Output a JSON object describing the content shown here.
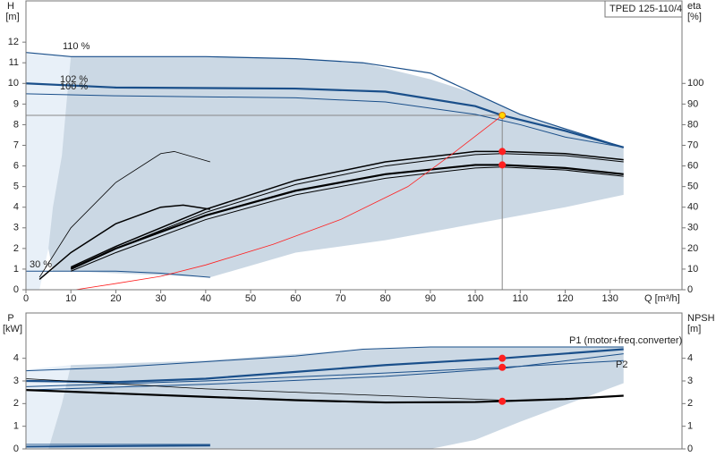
{
  "chart_data": [
    {
      "type": "line",
      "title": "TPED 125-110/4",
      "ylabel": "H",
      "yunit": "[m]",
      "y2label": "eta",
      "y2unit": "[%]",
      "xlabel": "Q [m³/h]",
      "xlim": [
        0,
        146
      ],
      "xticks": [
        0,
        10,
        20,
        30,
        40,
        50,
        60,
        70,
        80,
        90,
        100,
        110,
        120,
        130
      ],
      "ylim": [
        0,
        14
      ],
      "yticks": [
        0,
        1,
        2,
        3,
        4,
        5,
        6,
        7,
        8,
        9,
        10,
        11,
        12
      ],
      "y2lim": [
        0,
        140
      ],
      "y2ticks": [
        0,
        10,
        20,
        30,
        40,
        50,
        60,
        70,
        80,
        90,
        100
      ],
      "regions": [
        {
          "color": "#e8f0f8",
          "x": [
            0,
            10,
            9,
            8,
            6,
            4,
            3,
            0
          ],
          "values": [
            11.5,
            11.3,
            8,
            6,
            3,
            1,
            0,
            0
          ]
        },
        {
          "color": "#cbd8e4",
          "x": [
            10,
            20,
            40,
            60,
            75,
            90,
            100,
            110,
            120,
            133,
            133,
            120,
            100,
            80,
            60,
            41,
            20,
            10,
            6,
            5,
            6,
            8,
            9
          ],
          "values": [
            11.3,
            11.3,
            11.3,
            11.2,
            11.0,
            10.2,
            9.5,
            8.5,
            7.8,
            6.9,
            4.6,
            4.0,
            3.2,
            2.4,
            1.8,
            0.6,
            0.8,
            0.9,
            0.9,
            2,
            4,
            6.5,
            9
          ]
        }
      ],
      "series": [
        {
          "name": "110 %",
          "color": "#1a4f8a",
          "width": 1.2,
          "x": [
            0,
            10,
            20,
            40,
            60,
            75,
            90,
            100,
            110,
            120,
            133
          ],
          "values": [
            11.5,
            11.3,
            11.3,
            11.3,
            11.2,
            11.0,
            10.5,
            9.5,
            8.5,
            7.8,
            6.9
          ]
        },
        {
          "name": "102 %",
          "color": "#1a4f8a",
          "width": 2.2,
          "x": [
            0,
            20,
            60,
            80,
            100,
            106,
            120,
            133
          ],
          "values": [
            10,
            9.8,
            9.75,
            9.6,
            8.9,
            8.45,
            7.7,
            6.9
          ]
        },
        {
          "name": "100 %",
          "color": "#1a4f8a",
          "width": 1,
          "x": [
            0,
            20,
            60,
            80,
            100,
            110,
            120,
            133
          ],
          "values": [
            9.5,
            9.4,
            9.3,
            9.1,
            8.5,
            8.0,
            7.4,
            6.9
          ]
        },
        {
          "name": "30 %",
          "color": "#1a4f8a",
          "width": 1,
          "x": [
            0,
            20,
            30,
            41
          ],
          "values": [
            0.9,
            0.9,
            0.8,
            0.6
          ]
        },
        {
          "color": "#000000",
          "width": 2.2,
          "axis": "y2",
          "x": [
            10,
            20,
            40,
            60,
            80,
            100,
            106,
            120,
            133
          ],
          "values": [
            10,
            20,
            36,
            48,
            56,
            60.5,
            60.5,
            59,
            56
          ]
        },
        {
          "color": "#000000",
          "width": 1,
          "axis": "y2",
          "x": [
            10,
            20,
            40,
            60,
            80,
            100,
            106,
            120,
            133
          ],
          "values": [
            9,
            18,
            34,
            46,
            54,
            59,
            59.5,
            58,
            55
          ]
        },
        {
          "color": "#000000",
          "width": 1.5,
          "axis": "y2",
          "x": [
            10,
            20,
            40,
            60,
            80,
            100,
            106,
            120,
            133
          ],
          "values": [
            11,
            21,
            39,
            53,
            62,
            67,
            67,
            66,
            63
          ]
        },
        {
          "color": "#000000",
          "width": 1,
          "axis": "y2",
          "x": [
            10,
            20,
            40,
            60,
            80,
            100,
            106,
            120,
            133
          ],
          "values": [
            10.5,
            20,
            37.5,
            51,
            60,
            65.5,
            66,
            65,
            62
          ]
        },
        {
          "color": "#000000",
          "width": 1.5,
          "axis": "y2",
          "x": [
            3,
            10,
            20,
            30,
            35,
            41
          ],
          "values": [
            5,
            18,
            32,
            40,
            41,
            39
          ]
        },
        {
          "color": "#000000",
          "width": 0.8,
          "axis": "y2",
          "x": [
            3,
            10,
            20,
            30,
            33,
            41
          ],
          "values": [
            6,
            30,
            52,
            66,
            67,
            62
          ]
        },
        {
          "color": "#ff2020",
          "width": 0.8,
          "x": [
            11,
            20,
            30,
            40,
            55,
            70,
            85,
            95,
            106
          ],
          "values": [
            0,
            0.3,
            0.65,
            1.2,
            2.2,
            3.4,
            5.0,
            6.6,
            8.45
          ]
        }
      ],
      "points": [
        {
          "x": 106,
          "y": 8.45,
          "color": "#ffd700",
          "stroke": "#e07000",
          "guide": true
        },
        {
          "x": 106,
          "y": 67,
          "axis": "y2",
          "color": "#ff2020"
        },
        {
          "x": 106,
          "y": 60.5,
          "axis": "y2",
          "color": "#ff2020"
        }
      ]
    },
    {
      "type": "line",
      "ylabel": "P",
      "yunit": "[kW]",
      "y2label": "NPSH",
      "y2unit": "[m]",
      "xlim": [
        0,
        146
      ],
      "ylim": [
        0,
        6
      ],
      "yticks": [
        0,
        1,
        2,
        3,
        4
      ],
      "y2lim": [
        0,
        6
      ],
      "y2ticks": [
        0,
        1,
        2,
        3,
        4
      ],
      "regions": [
        {
          "color": "#e8f0f8",
          "x": [
            0,
            10,
            8,
            5,
            0
          ],
          "values": [
            3.5,
            3.7,
            2,
            0,
            0
          ]
        },
        {
          "color": "#cbd8e4",
          "x": [
            10,
            40,
            75,
            90,
            133,
            133,
            110,
            100,
            90,
            5,
            8,
            10
          ],
          "values": [
            3.7,
            3.9,
            4.4,
            4.5,
            4.5,
            2.9,
            1.2,
            0.4,
            0,
            0,
            2,
            3.7
          ]
        }
      ],
      "series": [
        {
          "name": "P1 (motor+freq.converter)",
          "color": "#1a4f8a",
          "width": 1,
          "x": [
            0,
            20,
            40,
            60,
            75,
            90,
            133
          ],
          "values": [
            3.45,
            3.6,
            3.85,
            4.1,
            4.4,
            4.5,
            4.5
          ]
        },
        {
          "color": "#1a4f8a",
          "width": 2.2,
          "x": [
            0,
            20,
            40,
            60,
            80,
            106,
            133
          ],
          "values": [
            3.0,
            2.95,
            3.1,
            3.4,
            3.7,
            4.0,
            4.4
          ]
        },
        {
          "name": "P2",
          "color": "#1a4f8a",
          "width": 1,
          "x": [
            0,
            40,
            80,
            106,
            133
          ],
          "values": [
            2.75,
            3.0,
            3.35,
            3.6,
            3.9
          ]
        },
        {
          "color": "#1a4f8a",
          "width": 1,
          "x": [
            0,
            40,
            80,
            106,
            133
          ],
          "values": [
            2.6,
            2.85,
            3.2,
            3.55,
            4.2
          ]
        },
        {
          "color": "#000000",
          "width": 2.2,
          "axis": "y2",
          "x": [
            0,
            20,
            40,
            60,
            80,
            100,
            120,
            133
          ],
          "values": [
            2.6,
            2.45,
            2.3,
            2.15,
            2.05,
            2.07,
            2.2,
            2.35
          ]
        },
        {
          "color": "#000000",
          "width": 0.8,
          "axis": "y2",
          "x": [
            0,
            40,
            80,
            106
          ],
          "values": [
            3.1,
            2.65,
            2.35,
            2.15
          ]
        },
        {
          "color": "#1a4f8a",
          "width": 2,
          "x": [
            0,
            41
          ],
          "values": [
            0.1,
            0.15
          ]
        },
        {
          "color": "#1a4f8a",
          "width": 0.8,
          "x": [
            0,
            41
          ],
          "values": [
            0.2,
            0.2
          ]
        }
      ],
      "points": [
        {
          "x": 106,
          "y": 4.0,
          "color": "#ff2020"
        },
        {
          "x": 106,
          "y": 3.6,
          "color": "#ff2020"
        },
        {
          "x": 106,
          "y": 2.1,
          "axis": "y2",
          "color": "#ff2020"
        }
      ]
    }
  ]
}
